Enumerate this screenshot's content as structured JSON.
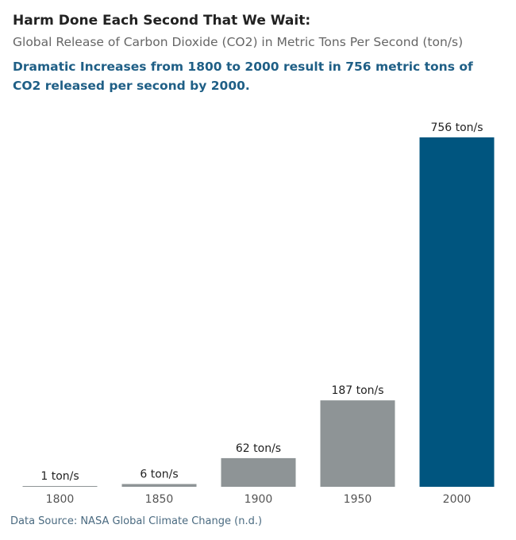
{
  "chart_data": {
    "type": "bar",
    "title": "Harm Done Each Second That We Wait:",
    "subtitle": "Global Release of Carbon Dioxide (CO2) in Metric Tons Per Second (ton/s)",
    "annotation": "Dramatic Increases from 1800 to 2000 result in 756 metric tons of CO2 released per second by 2000.",
    "source": "Data Source: NASA Global Climate Change (n.d.)",
    "categories": [
      "1800",
      "1850",
      "1900",
      "1950",
      "2000"
    ],
    "values": [
      1,
      6,
      62,
      187,
      756
    ],
    "value_labels": [
      "1 ton/s",
      "6 ton/s",
      "62 ton/s",
      "187 ton/s",
      "756 ton/s"
    ],
    "colors": [
      "#8e9496",
      "#8e9496",
      "#8e9496",
      "#8e9496",
      "#00557f"
    ]
  }
}
